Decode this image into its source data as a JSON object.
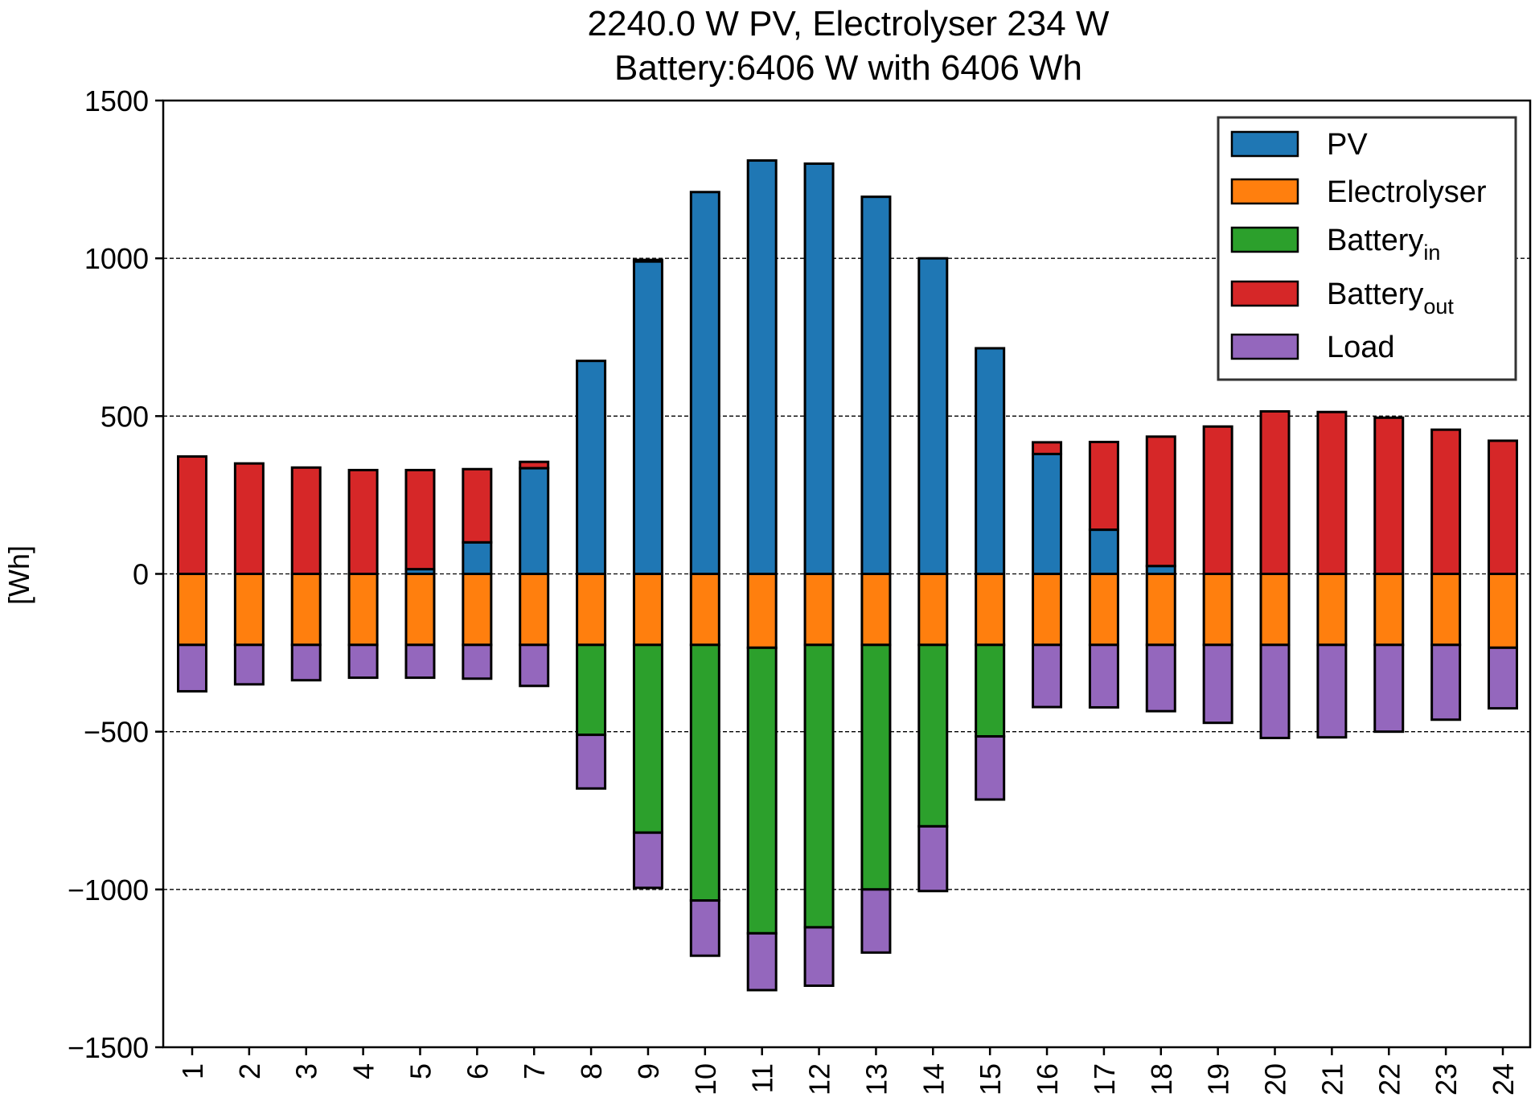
{
  "chart_data": {
    "type": "bar",
    "title_line1": "2240.0 W PV, Electrolyser 234 W",
    "title_line2": "Battery:6406 W with 6406 Wh",
    "xlabel": "",
    "ylabel": "[Wh]",
    "ylim": [
      -1500,
      1500
    ],
    "yticks": [
      1500,
      1000,
      500,
      0,
      -500,
      -1000,
      -1500
    ],
    "ytick_labels": [
      "1500",
      "1000",
      "500",
      "0",
      "−500",
      "−1000",
      "−1500"
    ],
    "grid": "horizontal dashed at major ticks",
    "legend_position": "top-right",
    "categories": [
      "1",
      "2",
      "3",
      "4",
      "5",
      "6",
      "7",
      "8",
      "9",
      "10",
      "11",
      "12",
      "13",
      "14",
      "15",
      "16",
      "17",
      "18",
      "19",
      "20",
      "21",
      "22",
      "23",
      "24"
    ],
    "series": [
      {
        "key": "pv",
        "name": "PV",
        "name_sub": "",
        "color": "#1f77b4",
        "direction": "positive",
        "values": [
          0,
          0,
          0,
          0,
          15,
          100,
          335,
          675,
          990,
          1210,
          1310,
          1300,
          1195,
          1000,
          715,
          380,
          140,
          25,
          0,
          0,
          0,
          0,
          0,
          0
        ]
      },
      {
        "key": "battery_out",
        "name": "Battery",
        "name_sub": "out",
        "color": "#d62728",
        "direction": "positive",
        "values": [
          372,
          350,
          337,
          329,
          314,
          232,
          20,
          0,
          5,
          0,
          0,
          0,
          0,
          0,
          0,
          37,
          278,
          410,
          467,
          515,
          513,
          495,
          457,
          422
        ]
      },
      {
        "key": "electrolyser",
        "name": "Electrolyser",
        "name_sub": "",
        "color": "#ff7f0e",
        "direction": "negative",
        "values": [
          225,
          225,
          225,
          225,
          225,
          225,
          225,
          225,
          225,
          225,
          234,
          225,
          225,
          225,
          225,
          225,
          225,
          225,
          225,
          225,
          225,
          225,
          225,
          234
        ]
      },
      {
        "key": "battery_in",
        "name": "Battery",
        "name_sub": "in",
        "color": "#2ca02c",
        "direction": "negative",
        "values": [
          0,
          0,
          0,
          0,
          0,
          0,
          0,
          285,
          595,
          810,
          905,
          895,
          775,
          575,
          290,
          0,
          0,
          0,
          0,
          0,
          0,
          0,
          0,
          0
        ]
      },
      {
        "key": "load",
        "name": "Load",
        "name_sub": "",
        "color": "#9467bd",
        "direction": "negative",
        "values": [
          147,
          125,
          112,
          104,
          104,
          107,
          130,
          170,
          175,
          175,
          180,
          185,
          200,
          205,
          200,
          197,
          198,
          210,
          247,
          295,
          293,
          275,
          237,
          192
        ]
      }
    ],
    "legend_order": [
      "pv",
      "electrolyser",
      "battery_in",
      "battery_out",
      "load"
    ]
  }
}
